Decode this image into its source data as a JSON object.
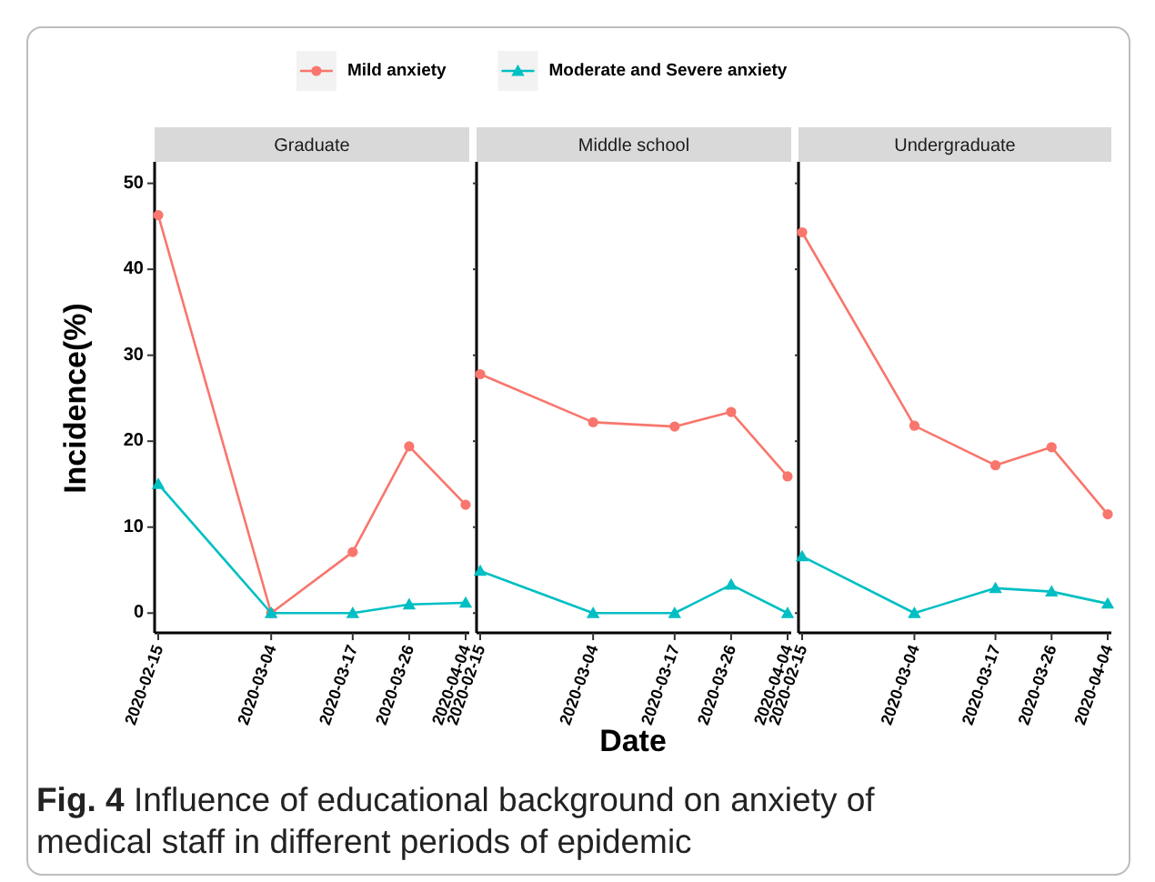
{
  "chart_data": [
    {
      "type": "line",
      "title": "Graduate",
      "ylabel": "Incidence(%)",
      "legend": "top",
      "x": [
        "2020-02-15",
        "2020-03-04",
        "2020-03-17",
        "2020-03-26",
        "2020-04-04"
      ],
      "xlim": [
        "2020-02-14T10:00",
        "2020-04-04T14:00"
      ],
      "xticks": [
        "2020-02-15",
        "2020-03-04",
        "2020-03-17",
        "2020-03-26",
        "2020-04-04"
      ],
      "ylim": [
        -2.3,
        52.5
      ],
      "yticks": [
        0,
        10,
        20,
        30,
        40,
        50
      ],
      "grid": false,
      "series": [
        {
          "name": "Mild anxiety",
          "color": "#f8766d",
          "marker": "circle",
          "values": [
            46.3,
            0,
            7.1,
            19.4,
            12.6
          ]
        },
        {
          "name": "Moderate and Severe anxiety",
          "color": "#00bfc4",
          "marker": "triangle",
          "values": [
            15.0,
            0,
            0,
            1.0,
            1.2
          ]
        }
      ],
      "annotations": [
        "Fig. 4 Influence of educational background on anxiety of medical staff in different periods of epidemic"
      ]
    },
    {
      "type": "line",
      "title": "Middle school",
      "xlabel": "Date",
      "tick_labels": "x",
      "x": [
        "2020-02-15",
        "2020-03-04",
        "2020-03-17",
        "2020-03-26",
        "2020-04-04"
      ],
      "xlim": [
        "2020-02-14T10:00",
        "2020-04-04T14:00"
      ],
      "xticks": [
        "2020-02-15",
        "2020-03-04",
        "2020-03-17",
        "2020-03-26",
        "2020-04-04"
      ],
      "ylim": [
        -2.3,
        52.5
      ],
      "yticks": [
        0,
        10,
        20,
        30,
        40,
        50
      ],
      "grid": false,
      "series": [
        {
          "color": "#f8766d",
          "marker": "circle",
          "values": [
            27.8,
            22.2,
            21.7,
            23.4,
            15.9
          ]
        },
        {
          "color": "#00bfc4",
          "marker": "triangle",
          "values": [
            4.9,
            0,
            0,
            3.3,
            0
          ]
        }
      ]
    },
    {
      "type": "line",
      "title": "Undergraduate",
      "tick_labels": "x",
      "x": [
        "2020-02-15",
        "2020-03-04",
        "2020-03-17",
        "2020-03-26",
        "2020-04-04"
      ],
      "xlim": [
        "2020-02-14T10:00",
        "2020-04-04T14:00"
      ],
      "xticks": [
        "2020-02-15",
        "2020-03-04",
        "2020-03-17",
        "2020-03-26",
        "2020-04-04"
      ],
      "ylim": [
        -2.3,
        52.5
      ],
      "yticks": [
        0,
        10,
        20,
        30,
        40,
        50
      ],
      "grid": false,
      "series": [
        {
          "color": "#f8766d",
          "marker": "circle",
          "values": [
            44.3,
            21.8,
            17.2,
            19.3,
            11.5
          ]
        },
        {
          "color": "#00bfc4",
          "marker": "triangle",
          "values": [
            6.6,
            0,
            2.9,
            2.5,
            1.1
          ]
        }
      ]
    }
  ]
}
